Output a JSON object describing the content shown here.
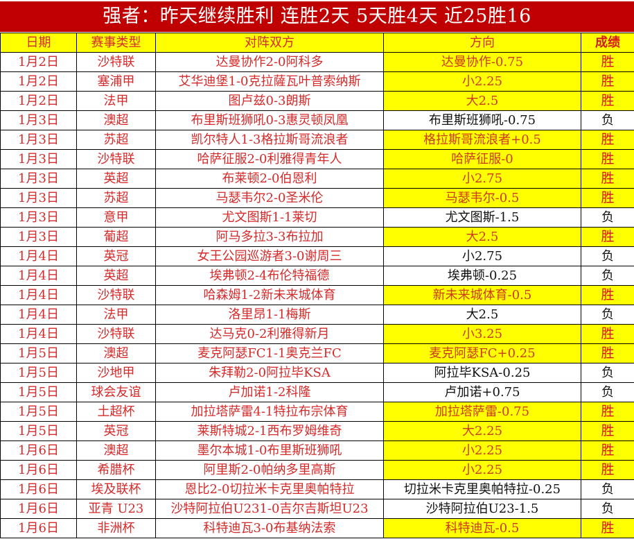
{
  "title": "强者：昨天继续胜利 连胜2天 5天胜4天 近25胜16",
  "headers": [
    "日期",
    "赛事类型",
    "对阵双方",
    "方向",
    "成绩"
  ],
  "colors": {
    "title_bg": "#c00000",
    "highlight": "#ffff00",
    "text_red": "#d42a2a"
  },
  "rows": [
    [
      "1月2日",
      "沙特联",
      "达曼协作2-0阿科多",
      "达曼协作-0.75",
      "胜"
    ],
    [
      "1月2日",
      "塞浦甲",
      "艾华迪堡1-0克拉薩瓦叶普索纳斯",
      "小2.25",
      "胜"
    ],
    [
      "1月2日",
      "法甲",
      "图卢兹0-3朗斯",
      "大2.5",
      "胜"
    ],
    [
      "1月3日",
      "澳超",
      "布里斯班狮吼0-3惠灵顿凤凰",
      "布里斯班狮吼-0.75",
      "负"
    ],
    [
      "1月3日",
      "苏超",
      "凯尔特人1-3格拉斯哥流浪者",
      "格拉斯哥流浪者+0.5",
      "胜"
    ],
    [
      "1月3日",
      "沙特联",
      "哈萨征服2-0利雅得青年人",
      "哈萨征服-0",
      "胜"
    ],
    [
      "1月3日",
      "英超",
      "布莱顿2-0伯恩利",
      "小2.75",
      "胜"
    ],
    [
      "1月3日",
      "苏超",
      "马瑟韦尔2-0圣米伦",
      "马瑟韦尔-0.5",
      "胜"
    ],
    [
      "1月3日",
      "意甲",
      "尤文图斯1-1莱切",
      "尤文图斯-1.5",
      "负"
    ],
    [
      "1月3日",
      "葡超",
      "阿马多拉3-3布拉加",
      "大2.5",
      "胜"
    ],
    [
      "1月4日",
      "英冠",
      "女王公园巡游者3-0谢周三",
      "小2.75",
      "负"
    ],
    [
      "1月4日",
      "英超",
      "埃弗顿2-4布伦特福德",
      "埃弗顿-0.25",
      "负"
    ],
    [
      "1月4日",
      "沙特联",
      "哈森姆1-2新未来城体育",
      "新未来城体育-0.5",
      "胜"
    ],
    [
      "1月4日",
      "法甲",
      "洛里昂1-1梅斯",
      "大2.5",
      "负"
    ],
    [
      "1月4日",
      "沙特联",
      "达马克0-2利雅得新月",
      "小3.25",
      "胜"
    ],
    [
      "1月5日",
      "澳超",
      "麦克阿瑟FC1-1奥克兰FC",
      "麦克阿瑟FC+0.25",
      "胜"
    ],
    [
      "1月5日",
      "沙地甲",
      "朱拜勒2-0阿拉毕KSA",
      "阿拉毕KSA-0.25",
      "负"
    ],
    [
      "1月5日",
      "球会友谊",
      "卢加诺1-2科隆",
      "卢加诺+0.75",
      "负"
    ],
    [
      "1月5日",
      "土超杯",
      "加拉塔萨雷4-1特拉布宗体育",
      "加拉塔萨雷-0.75",
      "胜"
    ],
    [
      "1月5日",
      "英冠",
      "莱斯特城2-1西布罗姆维奇",
      "大2.25",
      "胜"
    ],
    [
      "1月6日",
      "澳超",
      "墨尔本城1-0布里斯班狮吼",
      "小2.25",
      "胜"
    ],
    [
      "1月6日",
      "希腊杯",
      "阿里斯2-0帕纳多里高斯",
      "小2.25",
      "胜"
    ],
    [
      "1月6日",
      "埃及联杯",
      "恩比2-0切拉米卡克里奥帕特拉",
      "切拉米卡克里奥帕特拉-0.25",
      "负"
    ],
    [
      "1月6日",
      "亚青 U23",
      "沙特阿拉伯U231-0吉尔吉斯坦U23",
      "沙特阿拉伯U23-1.5",
      "负"
    ],
    [
      "1月6日",
      "非洲杯",
      "科特迪瓦3-0布基纳法索",
      "科特迪瓦-0.5",
      "胜"
    ]
  ]
}
